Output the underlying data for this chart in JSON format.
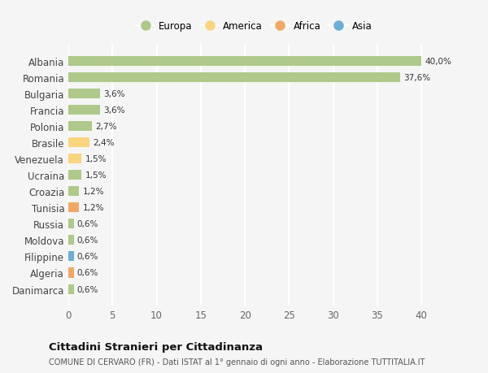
{
  "countries": [
    "Albania",
    "Romania",
    "Bulgaria",
    "Francia",
    "Polonia",
    "Brasile",
    "Venezuela",
    "Ucraina",
    "Croazia",
    "Tunisia",
    "Russia",
    "Moldova",
    "Filippine",
    "Algeria",
    "Danimarca"
  ],
  "values": [
    40.0,
    37.6,
    3.6,
    3.6,
    2.7,
    2.4,
    1.5,
    1.5,
    1.2,
    1.2,
    0.6,
    0.6,
    0.6,
    0.6,
    0.6
  ],
  "labels": [
    "40,0%",
    "37,6%",
    "3,6%",
    "3,6%",
    "2,7%",
    "2,4%",
    "1,5%",
    "1,5%",
    "1,2%",
    "1,2%",
    "0,6%",
    "0,6%",
    "0,6%",
    "0,6%",
    "0,6%"
  ],
  "continents": [
    "Europa",
    "Europa",
    "Europa",
    "Europa",
    "Europa",
    "America",
    "America",
    "Europa",
    "Europa",
    "Africa",
    "Europa",
    "Europa",
    "Asia",
    "Africa",
    "Europa"
  ],
  "continent_colors": {
    "Europa": "#aec98a",
    "America": "#f9d580",
    "Africa": "#f0a868",
    "Asia": "#6baed6"
  },
  "legend_order": [
    "Europa",
    "America",
    "Africa",
    "Asia"
  ],
  "bg_color": "#f5f5f5",
  "grid_color": "#ffffff",
  "title": "Cittadini Stranieri per Cittadinanza",
  "subtitle": "COMUNE DI CERVARO (FR) - Dati ISTAT al 1° gennaio di ogni anno - Elaborazione TUTTITALIA.IT",
  "xlim": [
    0,
    42
  ],
  "xticks": [
    0,
    5,
    10,
    15,
    20,
    25,
    30,
    35,
    40
  ],
  "bar_height": 0.6
}
